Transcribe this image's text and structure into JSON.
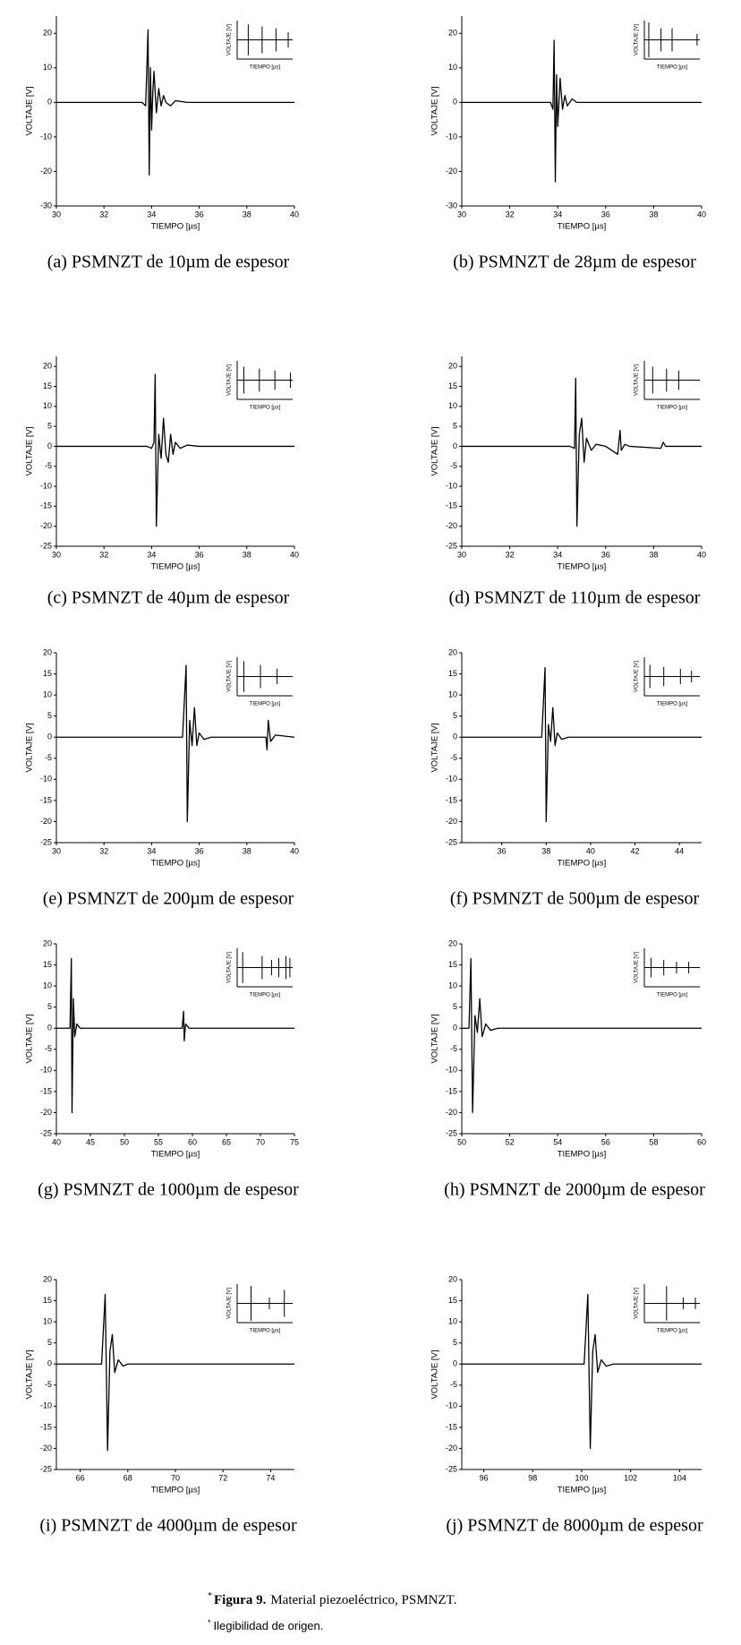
{
  "chart_data": [
    {
      "type": "line",
      "caption": "(a) PSMNZT de 10µm de espesor",
      "xlabel": "TIEMPO [µs]",
      "ylabel": "VOLTAJE [V]",
      "x": [
        30,
        33.6,
        33.75,
        33.85,
        33.9,
        33.95,
        34.0,
        34.05,
        34.1,
        34.2,
        34.3,
        34.4,
        34.5,
        34.6,
        34.8,
        35.0,
        35.5,
        40
      ],
      "values": [
        0,
        0,
        -1,
        21,
        -21,
        10,
        -8,
        3,
        9,
        -3,
        4,
        -1,
        2,
        0,
        -1,
        0.5,
        0,
        0
      ],
      "color": "#000000",
      "xlim": [
        30,
        40
      ],
      "xticks": [
        30,
        32,
        34,
        36,
        38,
        40
      ],
      "ylim": [
        -30,
        25
      ],
      "yticks": [
        -30,
        -20,
        -10,
        0,
        10,
        20
      ],
      "inset": {
        "xlabel": "TIEMPO [µs]",
        "ylabel": "VOLTAJE [V]",
        "x": [
          20,
          45,
          70,
          92
        ],
        "values": [
          0.8,
          0.7,
          0.6,
          0.4
        ],
        "xlim": [
          0,
          100
        ],
        "ylim": [
          -1,
          1
        ]
      }
    },
    {
      "type": "line",
      "caption": "(b) PSMNZT de 28µm de espesor",
      "xlabel": "TIEMPO [µs]",
      "ylabel": "VOLTAJE [V]",
      "x": [
        30,
        33.7,
        33.8,
        33.85,
        33.9,
        33.95,
        34.0,
        34.1,
        34.2,
        34.3,
        34.4,
        34.6,
        34.8,
        35,
        40
      ],
      "values": [
        0,
        0,
        -2,
        18,
        -23,
        8,
        -7,
        7,
        -2,
        2,
        -1,
        1,
        0,
        0,
        0
      ],
      "color": "#000000",
      "xlim": [
        30,
        40
      ],
      "xticks": [
        30,
        32,
        34,
        36,
        38,
        40
      ],
      "ylim": [
        -30,
        25
      ],
      "yticks": [
        -30,
        -20,
        -10,
        0,
        10,
        20
      ],
      "inset": {
        "xlabel": "TIEMPO [µs]",
        "ylabel": "VOLTAJE [V]",
        "x": [
          8,
          30,
          50,
          95
        ],
        "values": [
          0.9,
          0.6,
          0.6,
          0.3
        ],
        "xlim": [
          0,
          100
        ],
        "ylim": [
          -1,
          1
        ]
      }
    },
    {
      "type": "line",
      "caption": "(c) PSMNZT de 40µm de espesor",
      "xlabel": "TIEMPO [µs]",
      "ylabel": "VOLTAJE [V]",
      "x": [
        30,
        33.8,
        34.0,
        34.1,
        34.15,
        34.2,
        34.3,
        34.4,
        34.5,
        34.6,
        34.7,
        34.8,
        34.9,
        35.0,
        35.2,
        35.5,
        36,
        40
      ],
      "values": [
        0,
        0,
        -0.5,
        1,
        18,
        -20,
        3,
        -3,
        7,
        -2,
        -4,
        3,
        -2,
        1,
        -0.5,
        0.3,
        0,
        0
      ],
      "color": "#000000",
      "xlim": [
        30,
        40
      ],
      "xticks": [
        30,
        32,
        34,
        36,
        38,
        40
      ],
      "ylim": [
        -25,
        22.5
      ],
      "yticks": [
        -25,
        -20,
        -15,
        -10,
        -5,
        0,
        5,
        10,
        15,
        20
      ],
      "inset": {
        "xlabel": "TIEMPO [µs]",
        "ylabel": "VOLTAJE [V]",
        "x": [
          12,
          40,
          68,
          96
        ],
        "values": [
          0.7,
          0.6,
          0.5,
          0.4
        ],
        "xlim": [
          0,
          100
        ],
        "ylim": [
          -1,
          1
        ]
      }
    },
    {
      "type": "line",
      "caption": "(d) PSMNZT de 110µm de espesor",
      "xlabel": "TIEMPO [µs]",
      "ylabel": "VOLTAJE [V]",
      "x": [
        30,
        34.5,
        34.7,
        34.75,
        34.8,
        34.9,
        35.0,
        35.1,
        35.2,
        35.4,
        35.6,
        36.0,
        36.5,
        36.6,
        36.65,
        36.8,
        37,
        38.3,
        38.4,
        38.5,
        40
      ],
      "values": [
        0,
        0,
        -0.5,
        17,
        -20,
        3,
        7,
        -4,
        2,
        -1,
        0.5,
        0,
        -2,
        4,
        -1,
        0.5,
        0,
        -0.5,
        1,
        0,
        0
      ],
      "color": "#000000",
      "xlim": [
        30,
        40
      ],
      "xticks": [
        30,
        32,
        34,
        36,
        38,
        40
      ],
      "ylim": [
        -25,
        22.5
      ],
      "yticks": [
        -25,
        -20,
        -15,
        -10,
        -5,
        0,
        5,
        10,
        15,
        20
      ],
      "inset": {
        "xlabel": "TIEMPO [µs]",
        "ylabel": "VOLTAJE [V]",
        "x": [
          15,
          40,
          62
        ],
        "values": [
          0.7,
          0.6,
          0.5
        ],
        "xlim": [
          0,
          100
        ],
        "ylim": [
          -1,
          1
        ]
      }
    },
    {
      "type": "line",
      "caption": "(e) PSMNZT de 200µm de espesor",
      "xlabel": "TIEMPO [µs]",
      "ylabel": "VOLTAJE [V]",
      "x": [
        30,
        35.3,
        35.45,
        35.5,
        35.6,
        35.7,
        35.8,
        35.9,
        36.0,
        36.2,
        36.5,
        38.8,
        38.85,
        38.9,
        39.0,
        39.2,
        40
      ],
      "values": [
        0,
        0,
        17,
        -20,
        4,
        -2,
        7,
        -2,
        1,
        -0.5,
        0,
        0,
        -3,
        4,
        -1,
        0.5,
        0
      ],
      "color": "#000000",
      "xlim": [
        30,
        40
      ],
      "xticks": [
        30,
        32,
        34,
        36,
        38,
        40
      ],
      "ylim": [
        -25,
        20
      ],
      "yticks": [
        -25,
        -20,
        -15,
        -10,
        -5,
        0,
        5,
        10,
        15,
        20
      ],
      "inset": {
        "xlabel": "TIEMPO [µs]",
        "ylabel": "VOLTAJE [V]",
        "x": [
          12,
          42,
          72
        ],
        "values": [
          0.8,
          0.6,
          0.4
        ],
        "xlim": [
          0,
          100
        ],
        "ylim": [
          -1,
          1
        ]
      }
    },
    {
      "type": "line",
      "caption": "(f) PSMNZT de 500µm de espesor",
      "xlabel": "TIEMPO [µs]",
      "ylabel": "VOLTAJE [V]",
      "x": [
        34.2,
        37.8,
        37.95,
        38.0,
        38.1,
        38.2,
        38.3,
        38.4,
        38.5,
        38.7,
        39,
        45
      ],
      "values": [
        0,
        0,
        16.5,
        -20,
        3,
        -1,
        7,
        -2,
        1,
        -0.5,
        0,
        0
      ],
      "color": "#000000",
      "xlim": [
        34.2,
        45
      ],
      "xticks": [
        36,
        38,
        40,
        42,
        44
      ],
      "ylim": [
        -25,
        20
      ],
      "yticks": [
        -25,
        -20,
        -15,
        -10,
        -5,
        0,
        5,
        10,
        15,
        20
      ],
      "inset": {
        "xlabel": "TIEMPO [µs]",
        "ylabel": "VOLTAJE [V]",
        "x": [
          10,
          35,
          65,
          85
        ],
        "values": [
          0.6,
          0.5,
          0.4,
          0.3
        ],
        "xlim": [
          0,
          100
        ],
        "ylim": [
          -1,
          1
        ]
      }
    },
    {
      "type": "line",
      "caption": "(g) PSMNZT de 1000µm de espesor",
      "xlabel": "TIEMPO [µs]",
      "ylabel": "VOLTAJE [V]",
      "x": [
        40,
        42.0,
        42.2,
        42.3,
        42.5,
        42.7,
        43.0,
        43.5,
        58.5,
        58.7,
        58.8,
        59.0,
        59.5,
        75
      ],
      "values": [
        0,
        0,
        16.5,
        -20,
        7,
        -2,
        1,
        0,
        0,
        4,
        -3,
        1,
        0,
        0
      ],
      "color": "#000000",
      "xlim": [
        40,
        75
      ],
      "xticks": [
        40,
        45,
        50,
        55,
        60,
        65,
        70,
        75
      ],
      "ylim": [
        -25,
        20
      ],
      "yticks": [
        -25,
        -20,
        -15,
        -10,
        -5,
        0,
        5,
        10,
        15,
        20
      ],
      "inset": {
        "xlabel": "TIEMPO [µs]",
        "ylabel": "VOLTAJE [V]",
        "x": [
          10,
          45,
          62,
          75,
          88,
          95
        ],
        "values": [
          0.8,
          0.6,
          0.4,
          0.5,
          0.6,
          0.5
        ],
        "xlim": [
          0,
          100
        ],
        "ylim": [
          -1,
          1
        ]
      }
    },
    {
      "type": "line",
      "caption": "(h) PSMNZT de 2000µm de espesor",
      "xlabel": "TIEMPO [µs]",
      "ylabel": "VOLTAJE [V]",
      "x": [
        50,
        50.3,
        50.38,
        50.45,
        50.55,
        50.65,
        50.75,
        50.85,
        51.0,
        51.2,
        51.5,
        60
      ],
      "values": [
        0,
        0,
        16.5,
        -20,
        3,
        -1,
        7,
        -2,
        1,
        -0.5,
        0,
        0
      ],
      "color": "#000000",
      "xlim": [
        50,
        60
      ],
      "xticks": [
        50,
        52,
        54,
        56,
        58,
        60
      ],
      "ylim": [
        -25,
        20
      ],
      "yticks": [
        -25,
        -20,
        -15,
        -10,
        -5,
        0,
        5,
        10,
        15,
        20
      ],
      "inset": {
        "xlabel": "TIEMPO [µs]",
        "ylabel": "VOLTAJE [V]",
        "x": [
          12,
          35,
          58,
          80
        ],
        "values": [
          0.5,
          0.4,
          0.3,
          0.3
        ],
        "xlim": [
          0,
          100
        ],
        "ylim": [
          -1,
          1
        ]
      }
    },
    {
      "type": "line",
      "caption": "(i) PSMNZT de 4000µm de espesor",
      "xlabel": "TIEMPO [µs]",
      "ylabel": "VOLTAJE [V]",
      "x": [
        65,
        66.9,
        67.05,
        67.15,
        67.25,
        67.35,
        67.45,
        67.6,
        67.8,
        68,
        75
      ],
      "values": [
        0,
        0,
        16.5,
        -20.5,
        3,
        7,
        -2,
        1,
        -0.5,
        0,
        0
      ],
      "color": "#000000",
      "xlim": [
        65,
        75
      ],
      "xticks": [
        66,
        68,
        70,
        72,
        74
      ],
      "ylim": [
        -25,
        20
      ],
      "yticks": [
        -25,
        -20,
        -15,
        -10,
        -5,
        0,
        5,
        10,
        15,
        20
      ],
      "inset": {
        "xlabel": "TIEMPO [µs]",
        "ylabel": "VOLTAJE [V]",
        "x": [
          25,
          58,
          85
        ],
        "values": [
          0.9,
          0.3,
          0.7
        ],
        "xlim": [
          0,
          100
        ],
        "ylim": [
          -1,
          1
        ]
      }
    },
    {
      "type": "line",
      "caption": "(j) PSMNZT de 8000µm de espesor",
      "xlabel": "TIEMPO [µs]",
      "ylabel": "VOLTAJE [V]",
      "x": [
        95.1,
        100.1,
        100.25,
        100.35,
        100.45,
        100.55,
        100.65,
        100.8,
        101,
        101.3,
        104.9
      ],
      "values": [
        0,
        0,
        16.5,
        -20,
        3,
        7,
        -2,
        1,
        -0.5,
        0,
        0
      ],
      "color": "#000000",
      "xlim": [
        95.1,
        104.9
      ],
      "xticks": [
        96,
        98,
        100,
        102,
        104
      ],
      "ylim": [
        -25,
        20
      ],
      "yticks": [
        -25,
        -20,
        -15,
        -10,
        -5,
        0,
        5,
        10,
        15,
        20
      ],
      "inset": {
        "xlabel": "TIEMPO [µs]",
        "ylabel": "VOLTAJE [V]",
        "x": [
          40,
          70,
          92
        ],
        "values": [
          0.9,
          0.3,
          0.3
        ],
        "xlim": [
          0,
          100
        ],
        "ylim": [
          -1,
          1
        ]
      }
    }
  ],
  "figure_caption": {
    "marker": "*",
    "label": "Figura 9.",
    "text": "Material piezoeléctrico, PSMNZT."
  },
  "note": {
    "marker": "*",
    "text": "Ilegibilidad de origen."
  }
}
